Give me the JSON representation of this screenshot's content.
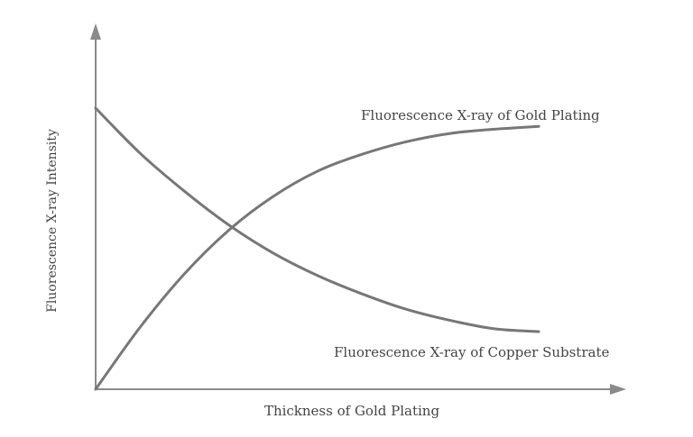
{
  "chart_data": {
    "type": "line",
    "title": "",
    "xlabel": "Thickness of Gold Plating",
    "ylabel": "Fluorescence X-ray Intensity",
    "xlim": [
      0,
      100
    ],
    "ylim": [
      0,
      100
    ],
    "grid": false,
    "legend": "none",
    "series": [
      {
        "name": "Fluorescence X-ray of Gold Plating",
        "color": "#777777",
        "x": [
          0,
          10,
          20,
          30,
          40,
          50,
          60,
          70,
          80,
          90,
          100
        ],
        "y": [
          0,
          22,
          41,
          56.5,
          68.5,
          77.5,
          83.5,
          88,
          91,
          92.5,
          93.5
        ]
      },
      {
        "name": "Fluorescence X-ray of Copper Substrate",
        "color": "#777777",
        "x": [
          0,
          10,
          20,
          30,
          40,
          50,
          60,
          70,
          80,
          90,
          100
        ],
        "y": [
          100,
          84,
          70.5,
          58.5,
          48.5,
          40.5,
          34,
          28.5,
          24.5,
          21.5,
          20.5
        ]
      }
    ]
  }
}
